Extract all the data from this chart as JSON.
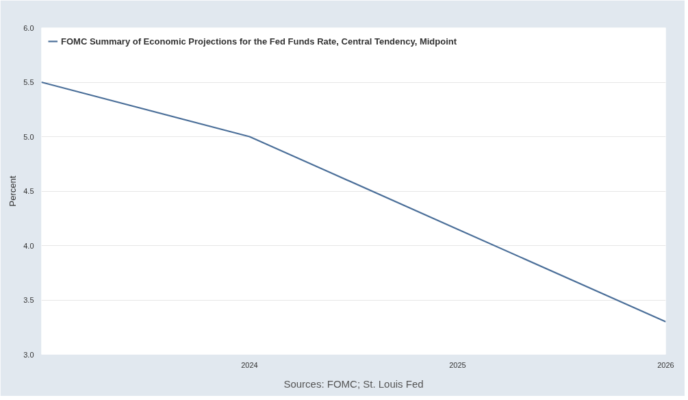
{
  "chart_data": {
    "type": "line",
    "x": [
      "2023",
      "2024",
      "2025",
      "2026"
    ],
    "series": [
      {
        "name": "FOMC Summary of Economic Projections for the Fed Funds Rate, Central Tendency, Midpoint",
        "color": "#4b6f99",
        "values": [
          5.5,
          5.0,
          4.15,
          3.3
        ]
      }
    ],
    "ylabel": "Percent",
    "xlim": [
      "2023",
      "2026"
    ],
    "xticks": [
      {
        "value": "2023",
        "label": null
      },
      "2024",
      "2025",
      "2026"
    ],
    "ylim": [
      3.0,
      6.0
    ],
    "yticks": [
      {
        "value": 3,
        "label": "3.0"
      },
      3.5,
      {
        "value": 4,
        "label": "4.0"
      },
      4.5,
      {
        "value": 5,
        "label": "5.0"
      },
      5.5,
      {
        "value": 6,
        "label": "6.0"
      }
    ],
    "grid": "y",
    "legend": "top",
    "annotations": [
      "Sources: FOMC; St. Louis Fed"
    ]
  }
}
